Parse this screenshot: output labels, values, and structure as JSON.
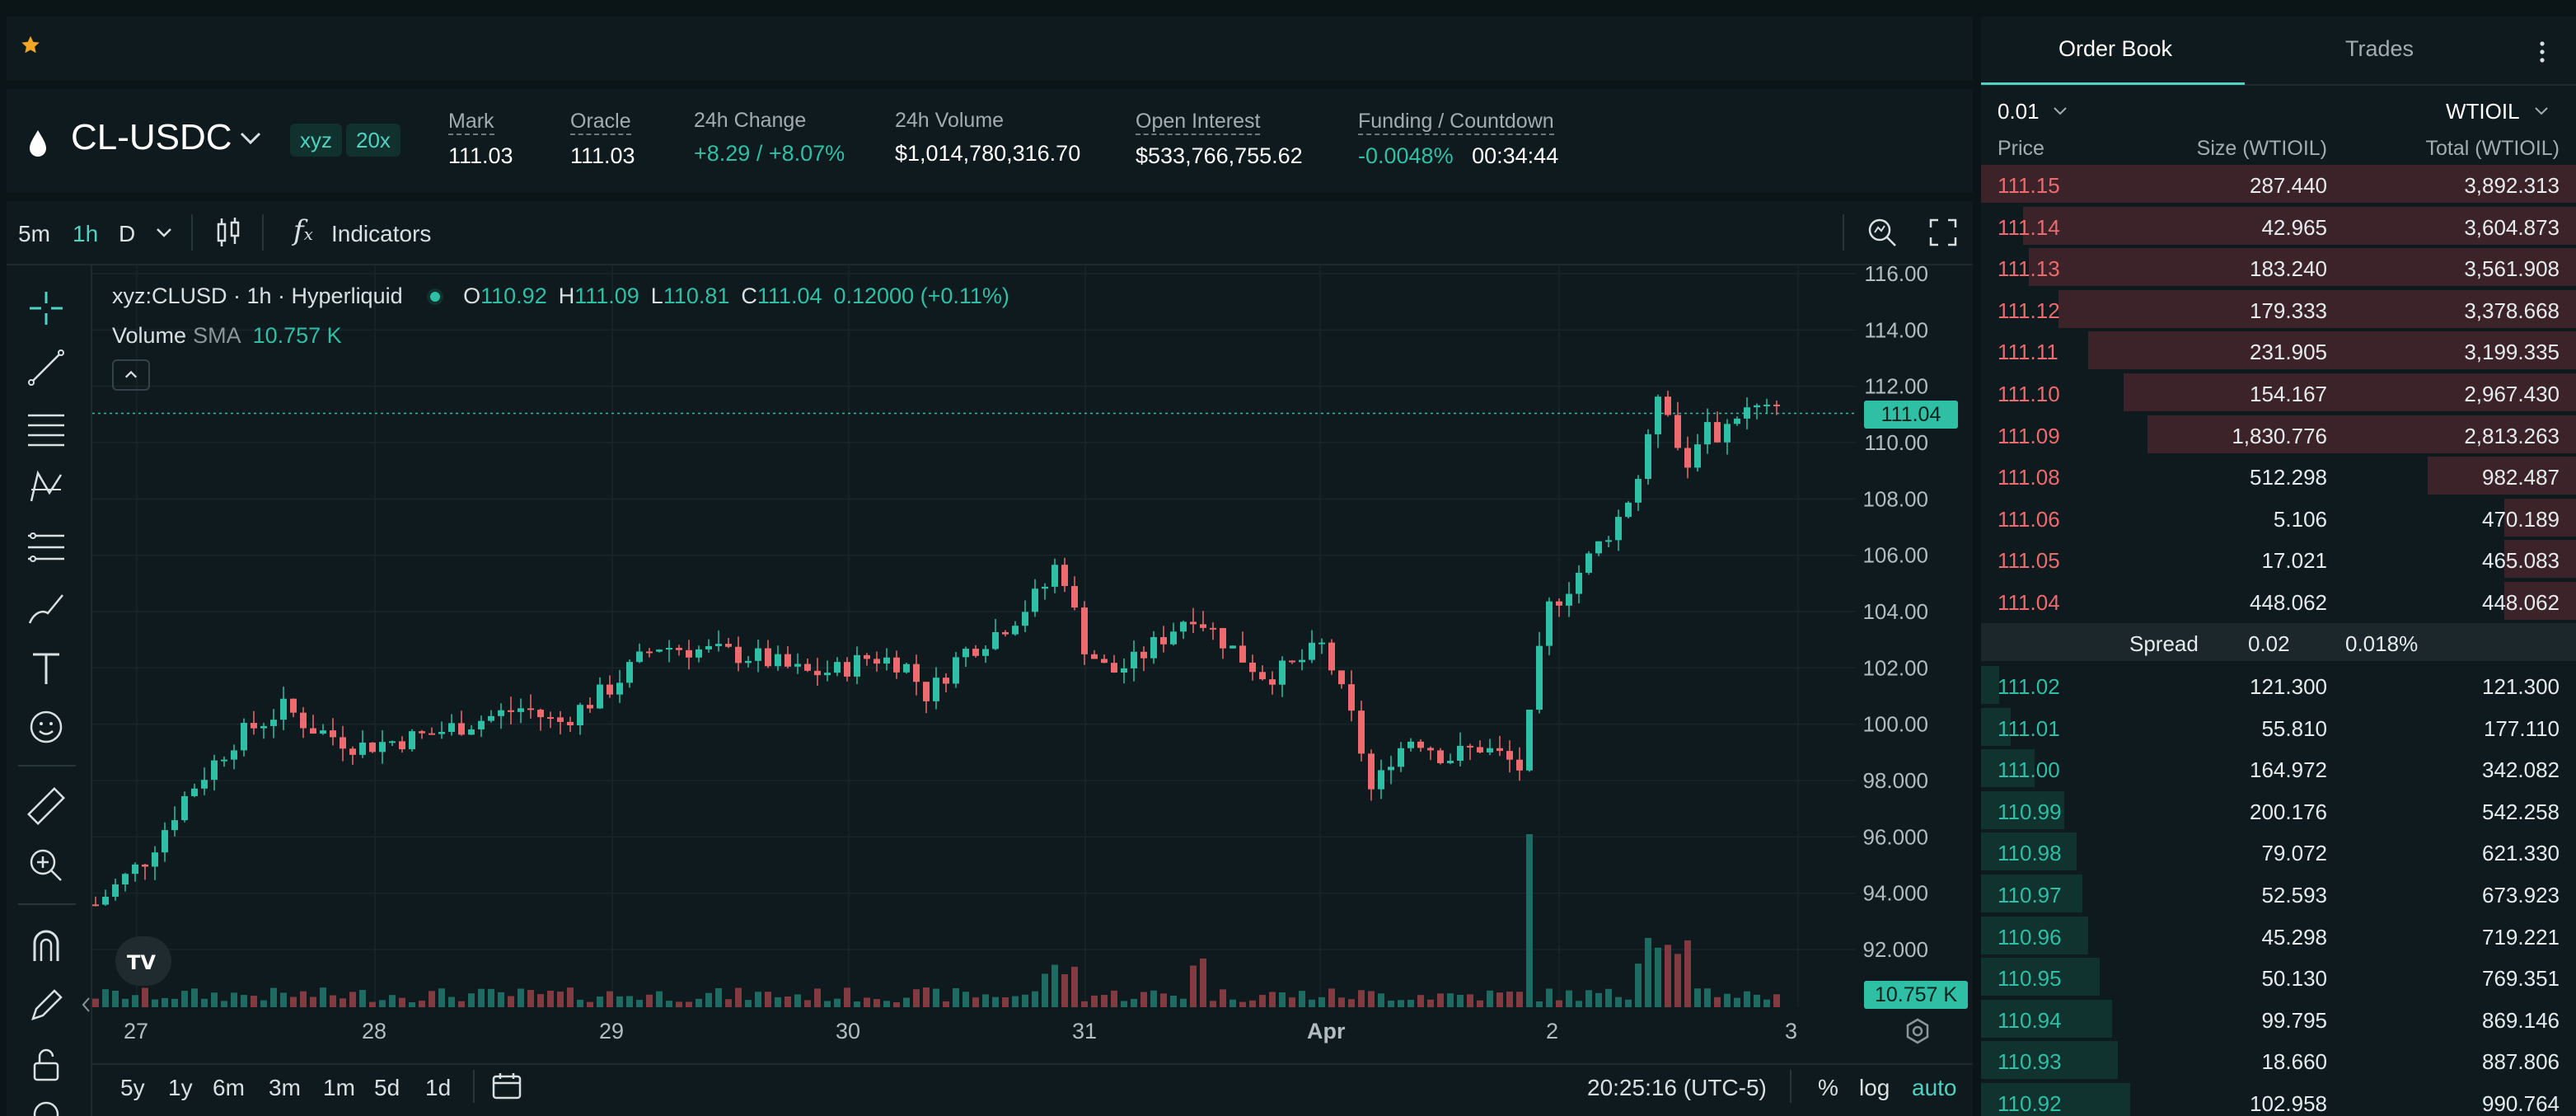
{
  "header": {
    "pair": "CL-USDC",
    "badges": [
      "xyz",
      "20x"
    ],
    "stats": [
      {
        "label": "Mark",
        "value": "111.03"
      },
      {
        "label": "Oracle",
        "value": "111.03"
      },
      {
        "label": "24h Change",
        "value": "+8.29 / +8.07%"
      },
      {
        "label": "24h Volume",
        "value": "$1,014,780,316.70"
      },
      {
        "label": "Open Interest",
        "value": "$533,766,755.62"
      },
      {
        "label": "Funding / Countdown",
        "value": "-0.0048%",
        "value2": "00:34:44"
      }
    ]
  },
  "toolbar": {
    "timeframes": [
      "5m",
      "1h",
      "D"
    ],
    "active_timeframe": "1h",
    "indicators_label": "Indicators"
  },
  "legend": {
    "symbol": "xyz:CLUSD · 1h · Hyperliquid",
    "o_label": "O",
    "o": "110.92",
    "h_label": "H",
    "h": "111.09",
    "l_label": "L",
    "l": "110.81",
    "c_label": "C",
    "c": "111.04",
    "change": "0.12000 (+0.11%)",
    "volume_label": "Volume",
    "sma_label": "SMA",
    "volume_value": "10.757 K"
  },
  "price_axis": [
    "116.00",
    "114.00",
    "112.00",
    "110.00",
    "108.00",
    "106.00",
    "104.00",
    "102.00",
    "100.00",
    "98.000",
    "96.000",
    "94.000",
    "92.000"
  ],
  "current_price_tag": "111.04",
  "volume_tag": "10.757 K",
  "time_axis": [
    "27",
    "28",
    "29",
    "30",
    "31",
    "Apr",
    "2",
    "3"
  ],
  "bottom": {
    "ranges": [
      "5y",
      "1y",
      "6m",
      "3m",
      "1m",
      "5d",
      "1d"
    ],
    "clock": "20:25:16 (UTC-5)",
    "percent": "%",
    "log": "log",
    "auto": "auto"
  },
  "orderbook": {
    "tabs": [
      "Order Book",
      "Trades"
    ],
    "tick": "0.01",
    "unit": "WTIOIL",
    "headers": [
      "Price",
      "Size (WTIOIL)",
      "Total (WTIOIL)"
    ],
    "asks": [
      {
        "price": "111.15",
        "size": "287.440",
        "total": "3,892.313",
        "depth": 1.0
      },
      {
        "price": "111.14",
        "size": "42.965",
        "total": "3,604.873",
        "depth": 0.93
      },
      {
        "price": "111.13",
        "size": "183.240",
        "total": "3,561.908",
        "depth": 0.92
      },
      {
        "price": "111.12",
        "size": "179.333",
        "total": "3,378.668",
        "depth": 0.87
      },
      {
        "price": "111.11",
        "size": "231.905",
        "total": "3,199.335",
        "depth": 0.82
      },
      {
        "price": "111.10",
        "size": "154.167",
        "total": "2,967.430",
        "depth": 0.76
      },
      {
        "price": "111.09",
        "size": "1,830.776",
        "total": "2,813.263",
        "depth": 0.72
      },
      {
        "price": "111.08",
        "size": "512.298",
        "total": "982.487",
        "depth": 0.25
      },
      {
        "price": "111.06",
        "size": "5.106",
        "total": "470.189",
        "depth": 0.12
      },
      {
        "price": "111.05",
        "size": "17.021",
        "total": "465.083",
        "depth": 0.12
      },
      {
        "price": "111.04",
        "size": "448.062",
        "total": "448.062",
        "depth": 0.12
      }
    ],
    "spread_label": "Spread",
    "spread_value": "0.02",
    "spread_pct": "0.018%",
    "bids": [
      {
        "price": "111.02",
        "size": "121.300",
        "total": "121.300",
        "depth": 0.03
      },
      {
        "price": "111.01",
        "size": "55.810",
        "total": "177.110",
        "depth": 0.05
      },
      {
        "price": "111.00",
        "size": "164.972",
        "total": "342.082",
        "depth": 0.09
      },
      {
        "price": "110.99",
        "size": "200.176",
        "total": "542.258",
        "depth": 0.14
      },
      {
        "price": "110.98",
        "size": "79.072",
        "total": "621.330",
        "depth": 0.16
      },
      {
        "price": "110.97",
        "size": "52.593",
        "total": "673.923",
        "depth": 0.17
      },
      {
        "price": "110.96",
        "size": "45.298",
        "total": "719.221",
        "depth": 0.18
      },
      {
        "price": "110.95",
        "size": "50.130",
        "total": "769.351",
        "depth": 0.2
      },
      {
        "price": "110.94",
        "size": "99.795",
        "total": "869.146",
        "depth": 0.22
      },
      {
        "price": "110.93",
        "size": "18.660",
        "total": "887.806",
        "depth": 0.23
      },
      {
        "price": "110.92",
        "size": "102.958",
        "total": "990.764",
        "depth": 0.25
      }
    ]
  },
  "colors": {
    "accent": "#50d2c1",
    "up": "#2ebfa5",
    "down": "#ed6a6f",
    "bg": "#0f1a1e"
  }
}
